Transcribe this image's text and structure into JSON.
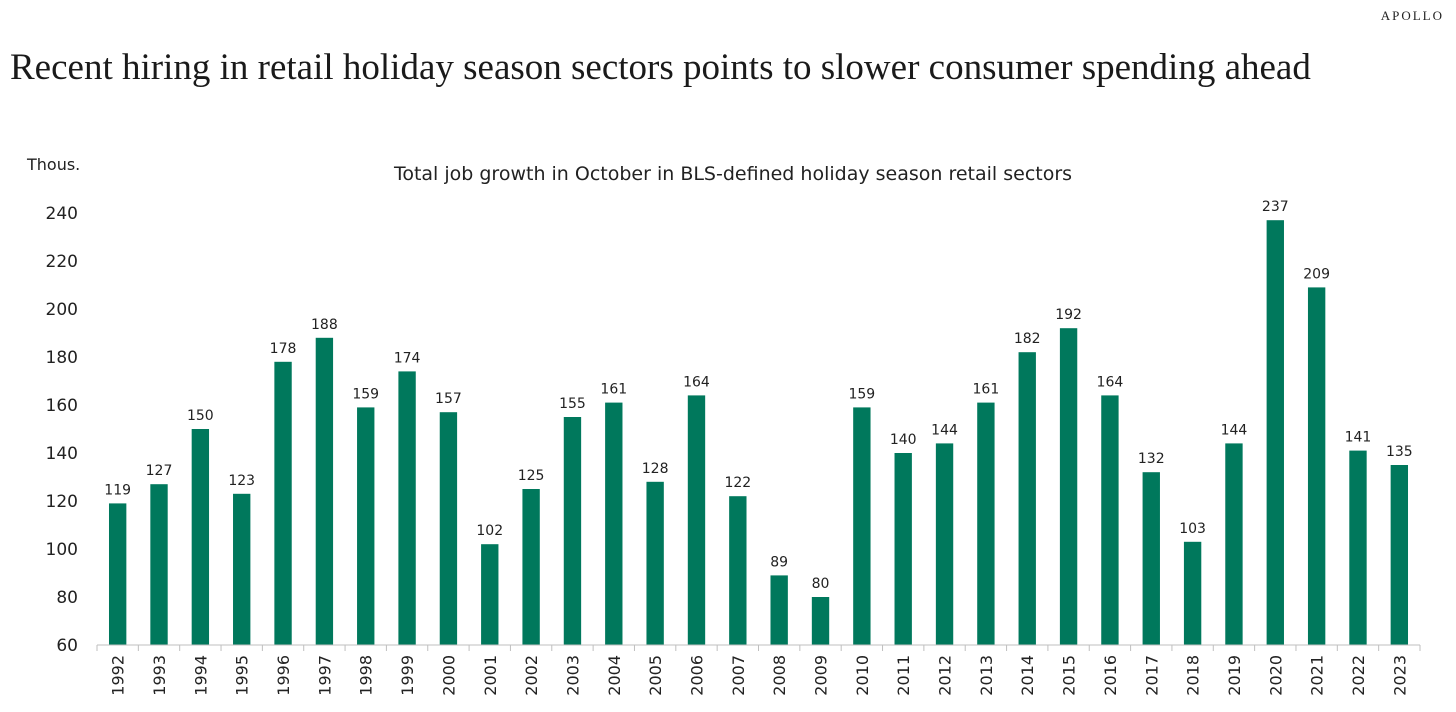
{
  "brand": "APOLLO",
  "headline": "Recent hiring in retail holiday season sectors points to slower consumer spending ahead",
  "chart_data": {
    "type": "bar",
    "title": "Total job growth in October in BLS-defined holiday season retail sectors",
    "ylabel": "Thous.",
    "xlabel": "",
    "ylim": [
      60,
      240
    ],
    "yticks": [
      60,
      80,
      100,
      120,
      140,
      160,
      180,
      200,
      220,
      240
    ],
    "grid": false,
    "legend": "none",
    "bar_color": "#00785C",
    "categories": [
      "1992",
      "1993",
      "1994",
      "1995",
      "1996",
      "1997",
      "1998",
      "1999",
      "2000",
      "2001",
      "2002",
      "2003",
      "2004",
      "2005",
      "2006",
      "2007",
      "2008",
      "2009",
      "2010",
      "2011",
      "2012",
      "2013",
      "2014",
      "2015",
      "2016",
      "2017",
      "2018",
      "2019",
      "2020",
      "2021",
      "2022",
      "2023"
    ],
    "values": [
      119,
      127,
      150,
      123,
      178,
      188,
      159,
      174,
      157,
      102,
      125,
      155,
      161,
      128,
      164,
      122,
      89,
      80,
      159,
      140,
      144,
      161,
      182,
      192,
      164,
      132,
      103,
      144,
      237,
      209,
      141,
      135
    ]
  }
}
